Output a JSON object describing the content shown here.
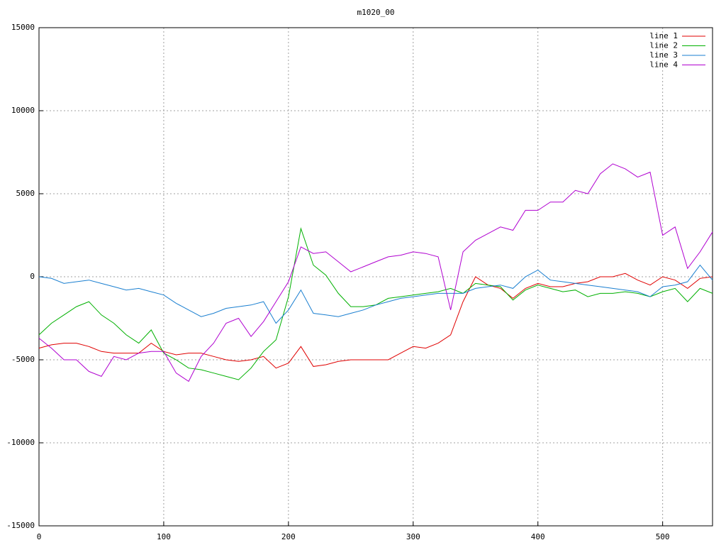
{
  "chart_data": {
    "type": "line",
    "title": "m1020_00",
    "x": [
      0,
      10,
      20,
      30,
      40,
      50,
      60,
      70,
      80,
      90,
      100,
      110,
      120,
      130,
      140,
      150,
      160,
      170,
      180,
      190,
      200,
      210,
      220,
      230,
      240,
      250,
      260,
      270,
      280,
      290,
      300,
      310,
      320,
      330,
      340,
      350,
      360,
      370,
      380,
      390,
      400,
      410,
      420,
      430,
      440,
      450,
      460,
      470,
      480,
      490,
      500,
      510,
      520,
      530,
      540
    ],
    "series": [
      {
        "name": "line 1",
        "color": "#e00000",
        "values": [
          -4300,
          -4100,
          -4000,
          -4000,
          -4200,
          -4500,
          -4600,
          -4600,
          -4600,
          -4000,
          -4500,
          -4700,
          -4600,
          -4600,
          -4800,
          -5000,
          -5100,
          -5000,
          -4800,
          -5500,
          -5200,
          -4200,
          -5400,
          -5300,
          -5100,
          -5000,
          -5000,
          -5000,
          -5000,
          -4600,
          -4200,
          -4300,
          -4000,
          -3500,
          -1500,
          0,
          -500,
          -700,
          -1300,
          -700,
          -400,
          -600,
          -600,
          -400,
          -300,
          0,
          0,
          200,
          -200,
          -500,
          0,
          -200,
          -700,
          -100,
          0
        ]
      },
      {
        "name": "line 2",
        "color": "#00b000",
        "values": [
          -3500,
          -2800,
          -2300,
          -1800,
          -1500,
          -2300,
          -2800,
          -3500,
          -4000,
          -3200,
          -4600,
          -5000,
          -5500,
          -5600,
          -5800,
          -6000,
          -6200,
          -5500,
          -4500,
          -3800,
          -1200,
          2900,
          700,
          100,
          -1000,
          -1800,
          -1800,
          -1700,
          -1300,
          -1200,
          -1100,
          -1000,
          -900,
          -700,
          -1000,
          -400,
          -500,
          -600,
          -1400,
          -800,
          -500,
          -700,
          -900,
          -800,
          -1200,
          -1000,
          -1000,
          -900,
          -1000,
          -1200,
          -900,
          -700,
          -1500,
          -700,
          -1000
        ]
      },
      {
        "name": "line 3",
        "color": "#1a7fd0",
        "values": [
          0,
          -100,
          -400,
          -300,
          -200,
          -400,
          -600,
          -800,
          -700,
          -900,
          -1100,
          -1600,
          -2000,
          -2400,
          -2200,
          -1900,
          -1800,
          -1700,
          -1500,
          -2800,
          -2000,
          -800,
          -2200,
          -2300,
          -2400,
          -2200,
          -2000,
          -1700,
          -1500,
          -1300,
          -1200,
          -1100,
          -1000,
          -1000,
          -1000,
          -700,
          -600,
          -500,
          -700,
          0,
          400,
          -200,
          -300,
          -400,
          -500,
          -600,
          -700,
          -800,
          -900,
          -1200,
          -600,
          -500,
          -300,
          700,
          -200
        ]
      },
      {
        "name": "line 4",
        "color": "#b000d0",
        "values": [
          -3700,
          -4300,
          -5000,
          -5000,
          -5700,
          -6000,
          -4800,
          -5000,
          -4600,
          -4500,
          -4500,
          -5800,
          -6300,
          -4800,
          -4000,
          -2800,
          -2500,
          -3600,
          -2700,
          -1500,
          -300,
          1800,
          1400,
          1500,
          900,
          300,
          600,
          900,
          1200,
          1300,
          1500,
          1400,
          1200,
          -2000,
          1500,
          2200,
          2600,
          3000,
          2800,
          4000,
          4000,
          4500,
          4500,
          5200,
          5000,
          6200,
          6800,
          6500,
          6000,
          6300,
          2500,
          3000,
          500,
          1500,
          2700
        ]
      }
    ],
    "xlim": [
      0,
      540
    ],
    "xticks": [
      0,
      100,
      200,
      300,
      400,
      500
    ],
    "ylim": [
      -15000,
      15000
    ],
    "yticks": [
      -15000,
      -10000,
      -5000,
      0,
      5000,
      10000,
      15000
    ],
    "grid": true,
    "legend": "top-right"
  }
}
